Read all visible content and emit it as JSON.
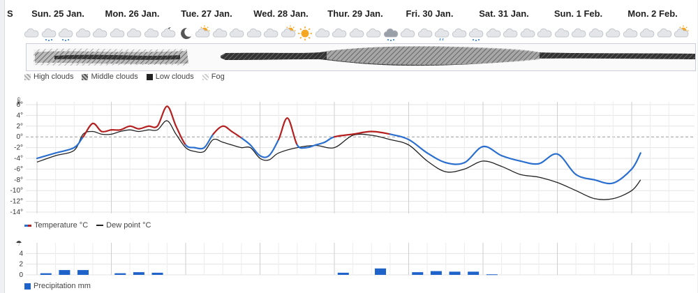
{
  "days": [
    {
      "label": "S",
      "x": 0
    },
    {
      "label": "Sun. 25 Jan.",
      "x": 1
    },
    {
      "label": "Mon. 26 Jan.",
      "x": 2
    },
    {
      "label": "Tue. 27 Jan.",
      "x": 3
    },
    {
      "label": "Wed. 28 Jan.",
      "x": 4
    },
    {
      "label": "Thur. 29 Jan.",
      "x": 5
    },
    {
      "label": "Fri. 30 Jan.",
      "x": 6
    },
    {
      "label": "Sat. 31 Jan.",
      "x": 7
    },
    {
      "label": "Sun. 1 Feb.",
      "x": 8
    },
    {
      "label": "Mon. 2 Feb.",
      "x": 9
    }
  ],
  "weather_icons": [
    "cloud",
    "cloud-snow",
    "cloud-snow",
    "cloud",
    "cloud",
    "cloud",
    "cloud",
    "cloud",
    "moon-cloud",
    "moon",
    "sun-cloud",
    "cloud",
    "cloud",
    "cloud",
    "cloud",
    "sun-cloud",
    "sun",
    "cloud",
    "cloud",
    "cloud",
    "cloud",
    "cloud-snow-dark",
    "cloud",
    "cloud",
    "cloud-rain",
    "cloud",
    "cloud-snow",
    "cloud",
    "cloud",
    "cloud",
    "cloud",
    "cloud",
    "cloud",
    "cloud",
    "cloud",
    "cloud",
    "cloud",
    "cloud",
    "sun-cloud"
  ],
  "cloud_legend": {
    "high": "High clouds",
    "middle": "Middle clouds",
    "low": "Low clouds",
    "fog": "Fog"
  },
  "temp_legend": {
    "temperature": "Temperature °C",
    "dewpoint": "Dew point °C"
  },
  "precip_legend": "Precipitation mm",
  "colors": {
    "warm": "#b51f1f",
    "cold": "#2a6fd0",
    "dew": "#222222",
    "precip": "#1e63c9"
  },
  "chart_data": [
    {
      "type": "line",
      "ylim": [
        -14,
        6
      ],
      "yticks": [
        6,
        4,
        2,
        0,
        -2,
        -4,
        -6,
        -8,
        -10,
        -12,
        -14
      ],
      "tick_suffix": "°",
      "x_unit": "days since 24 Jan. 00:00",
      "series": [
        {
          "name": "Temperature °C",
          "points": [
            [
              1,
              -4
            ],
            [
              1.25,
              -3
            ],
            [
              1.5,
              -2
            ],
            [
              1.62,
              0
            ],
            [
              1.75,
              2.5
            ],
            [
              1.87,
              1
            ],
            [
              2,
              1.3
            ],
            [
              2.12,
              1.3
            ],
            [
              2.25,
              2
            ],
            [
              2.37,
              1.5
            ],
            [
              2.5,
              2
            ],
            [
              2.62,
              2
            ],
            [
              2.75,
              5.7
            ],
            [
              2.87,
              2
            ],
            [
              3,
              -1.5
            ],
            [
              3.12,
              -2
            ],
            [
              3.25,
              -2
            ],
            [
              3.37,
              0.5
            ],
            [
              3.5,
              2
            ],
            [
              3.62,
              1
            ],
            [
              3.75,
              -0.2
            ],
            [
              3.87,
              -1.5
            ],
            [
              4,
              -3.5
            ],
            [
              4.12,
              -3.5
            ],
            [
              4.25,
              -0.5
            ],
            [
              4.37,
              3.5
            ],
            [
              4.5,
              -1.5
            ],
            [
              4.62,
              -2
            ],
            [
              4.75,
              -1.5
            ],
            [
              4.87,
              -1
            ],
            [
              5,
              0
            ],
            [
              5.25,
              0.5
            ],
            [
              5.5,
              1
            ],
            [
              5.75,
              0.5
            ],
            [
              6,
              -0.5
            ],
            [
              6.25,
              -3
            ],
            [
              6.5,
              -4.8
            ],
            [
              6.75,
              -4.8
            ],
            [
              7,
              -1.8
            ],
            [
              7.25,
              -3.5
            ],
            [
              7.5,
              -4.5
            ],
            [
              7.75,
              -5
            ],
            [
              8,
              -3.2
            ],
            [
              8.25,
              -7
            ],
            [
              8.5,
              -8
            ],
            [
              8.75,
              -8.6
            ],
            [
              9,
              -6
            ],
            [
              9.12,
              -3
            ]
          ]
        },
        {
          "name": "Dew point °C",
          "points": [
            [
              1,
              -4.7
            ],
            [
              1.25,
              -3.5
            ],
            [
              1.5,
              -2.5
            ],
            [
              1.62,
              0.5
            ],
            [
              1.75,
              1
            ],
            [
              1.87,
              0.5
            ],
            [
              2,
              0.5
            ],
            [
              2.12,
              1
            ],
            [
              2.25,
              1.3
            ],
            [
              2.37,
              1
            ],
            [
              2.5,
              1.3
            ],
            [
              2.62,
              1.3
            ],
            [
              2.75,
              3
            ],
            [
              2.87,
              0.5
            ],
            [
              3,
              -2
            ],
            [
              3.12,
              -2.7
            ],
            [
              3.25,
              -2.7
            ],
            [
              3.37,
              -0.5
            ],
            [
              3.5,
              -1
            ],
            [
              3.62,
              -1.5
            ],
            [
              3.75,
              -2
            ],
            [
              3.87,
              -2
            ],
            [
              4,
              -4
            ],
            [
              4.12,
              -4.3
            ],
            [
              4.25,
              -3
            ],
            [
              4.5,
              -2
            ],
            [
              4.75,
              -1.6
            ],
            [
              5,
              -2
            ],
            [
              5.25,
              0.3
            ],
            [
              5.5,
              0.3
            ],
            [
              5.75,
              -0.5
            ],
            [
              6,
              -1.5
            ],
            [
              6.25,
              -4.5
            ],
            [
              6.5,
              -6.5
            ],
            [
              6.75,
              -6
            ],
            [
              7,
              -4.5
            ],
            [
              7.25,
              -5.5
            ],
            [
              7.5,
              -7
            ],
            [
              7.75,
              -7.5
            ],
            [
              8,
              -8.5
            ],
            [
              8.25,
              -10
            ],
            [
              8.5,
              -11.5
            ],
            [
              8.75,
              -11.5
            ],
            [
              9,
              -10
            ],
            [
              9.12,
              -8
            ]
          ]
        }
      ]
    },
    {
      "type": "bar",
      "ylim": [
        0,
        6
      ],
      "yticks": [
        4,
        2,
        0
      ],
      "x_unit": "days since 24 Jan. 00:00",
      "series": [
        {
          "name": "Precipitation mm",
          "points": [
            [
              1.12,
              0.3
            ],
            [
              1.37,
              0.9
            ],
            [
              1.62,
              0.9
            ],
            [
              2.12,
              0.3
            ],
            [
              2.37,
              0.5
            ],
            [
              2.62,
              0.4
            ],
            [
              5.12,
              0.4
            ],
            [
              5.62,
              1.2
            ],
            [
              6.12,
              0.5
            ],
            [
              6.37,
              0.7
            ],
            [
              6.62,
              0.6
            ],
            [
              6.87,
              0.6
            ],
            [
              7.12,
              0.1
            ]
          ]
        }
      ]
    }
  ]
}
